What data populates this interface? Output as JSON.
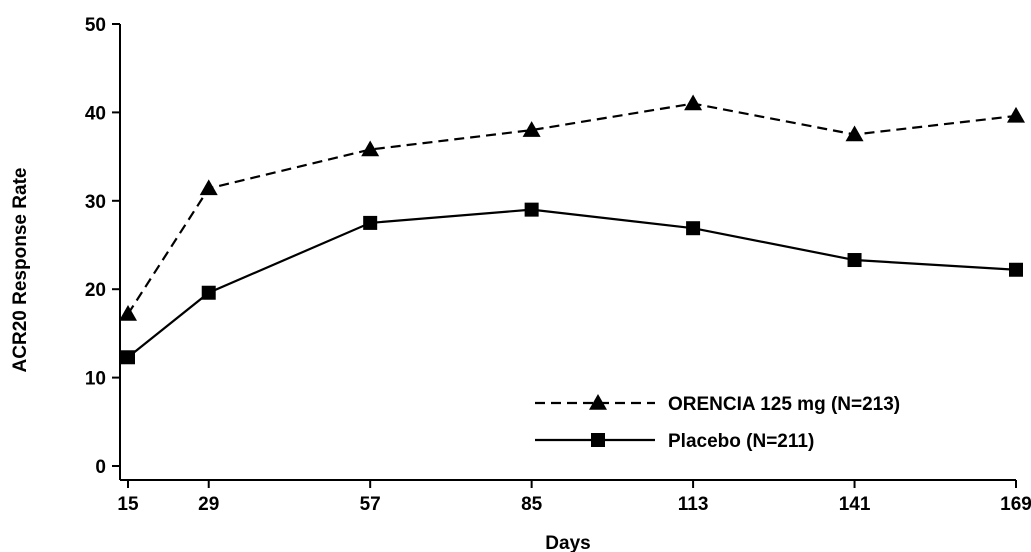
{
  "chart_data": {
    "type": "line",
    "xlabel": "Days",
    "ylabel": "ACR20 Response Rate",
    "x": [
      15,
      29,
      57,
      85,
      113,
      141,
      169
    ],
    "x_tick_labels": [
      "15",
      "29",
      "57",
      "85",
      "113",
      "141",
      "169"
    ],
    "ylim": [
      0,
      50
    ],
    "y_ticks": [
      0,
      10,
      20,
      30,
      40,
      50
    ],
    "y_tick_labels": [
      "0",
      "10",
      "20",
      "30",
      "40",
      "50"
    ],
    "grid": false,
    "legend_position": "bottom-right",
    "series": [
      {
        "name": "ORENCIA 125 mg (N=213)",
        "values": [
          17.2,
          31.4,
          35.8,
          38.0,
          41.0,
          37.5,
          39.6
        ],
        "line_style": "dashed",
        "marker": "triangle",
        "color": "#000000"
      },
      {
        "name": "Placebo (N=211)",
        "values": [
          12.3,
          19.6,
          27.5,
          29.0,
          26.9,
          23.3,
          22.2
        ],
        "line_style": "solid",
        "marker": "square",
        "color": "#000000"
      }
    ]
  }
}
